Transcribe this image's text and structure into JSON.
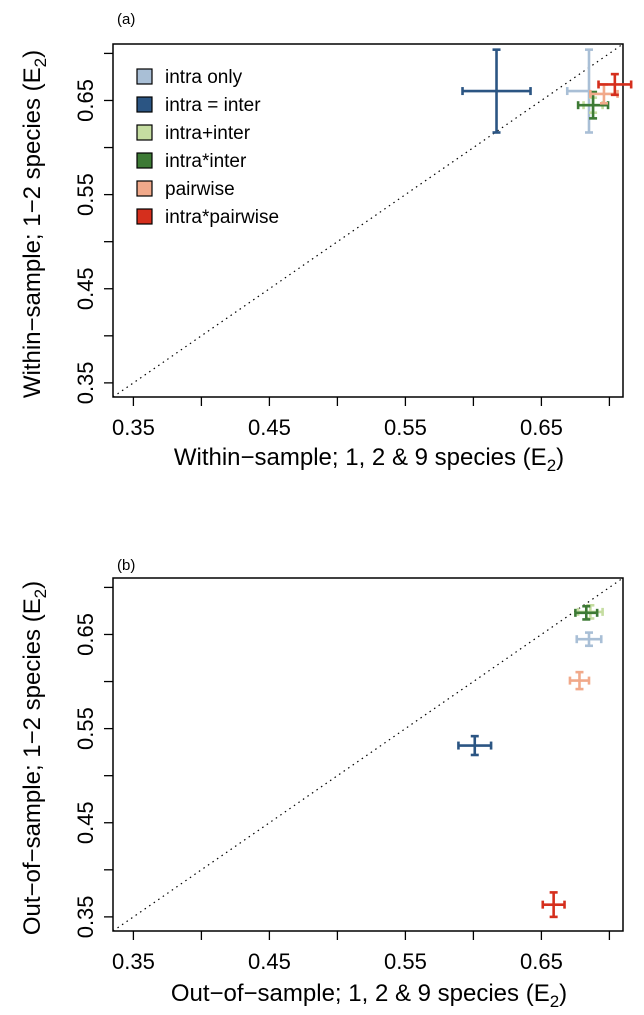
{
  "chart_data": [
    {
      "type": "scatter",
      "panel_label": "(a)",
      "xlabel_text": "Within−sample; 1, 2 & 9 species (E",
      "ylabel_text": "Within−sample; 1−2 species (E",
      "label_subscript": "2",
      "label_close": ")",
      "xlim": [
        0.335,
        0.71
      ],
      "ylim": [
        0.335,
        0.71
      ],
      "ticks": [
        0.35,
        0.45,
        0.55,
        0.65
      ],
      "tick_labels": [
        "0.35",
        "0.45",
        "0.55",
        "0.65"
      ],
      "reference_line": "1:1 dotted",
      "grid": false,
      "legend_position": "top-left",
      "series": [
        {
          "name": "intra only",
          "color": "#a9bfd6",
          "x": 0.685,
          "y": 0.66,
          "xerr": 0.0,
          "yerr": 0.044,
          "xerr_l": 0.016,
          "xerr_r": 0.0
        },
        {
          "name": "intra = inter",
          "color": "#2b5583",
          "x": 0.617,
          "y": 0.66,
          "xerr": 0.025,
          "yerr": 0.044
        },
        {
          "name": "intra+inter",
          "color": "#c5dda1",
          "x": 0.688,
          "y": 0.645,
          "xerr": 0.007,
          "yerr": 0.008
        },
        {
          "name": "intra*inter",
          "color": "#3d7a35",
          "x": 0.688,
          "y": 0.645,
          "xerr": 0.011,
          "yerr": 0.014
        },
        {
          "name": "pairwise",
          "color": "#f1a98a",
          "x": 0.696,
          "y": 0.657,
          "xerr": 0.01,
          "yerr": 0.01
        },
        {
          "name": "intra*pairwise",
          "color": "#d52f1d",
          "x": 0.704,
          "y": 0.667,
          "xerr": 0.012,
          "yerr": 0.011
        }
      ]
    },
    {
      "type": "scatter",
      "panel_label": "(b)",
      "xlabel_text": "Out−of−sample; 1, 2 & 9 species (E",
      "ylabel_text": "Out−of−sample; 1−2 species (E",
      "label_subscript": "2",
      "label_close": ")",
      "xlim": [
        0.335,
        0.71
      ],
      "ylim": [
        0.335,
        0.71
      ],
      "ticks": [
        0.35,
        0.45,
        0.55,
        0.65
      ],
      "tick_labels": [
        "0.35",
        "0.45",
        "0.55",
        "0.65"
      ],
      "reference_line": "1:1 dotted",
      "grid": false,
      "series": [
        {
          "name": "intra only",
          "color": "#a9bfd6",
          "x": 0.685,
          "y": 0.645,
          "xerr": 0.009,
          "yerr": 0.007
        },
        {
          "name": "intra = inter",
          "color": "#2b5583",
          "x": 0.601,
          "y": 0.532,
          "xerr": 0.012,
          "yerr": 0.01
        },
        {
          "name": "intra+inter",
          "color": "#c5dda1",
          "x": 0.686,
          "y": 0.674,
          "xerr": 0.009,
          "yerr": 0.007
        },
        {
          "name": "intra*inter",
          "color": "#3d7a35",
          "x": 0.683,
          "y": 0.673,
          "xerr": 0.008,
          "yerr": 0.007
        },
        {
          "name": "pairwise",
          "color": "#f1a98a",
          "x": 0.678,
          "y": 0.601,
          "xerr": 0.007,
          "yerr": 0.009
        },
        {
          "name": "intra*pairwise",
          "color": "#d52f1d",
          "x": 0.659,
          "y": 0.363,
          "xerr": 0.008,
          "yerr": 0.013
        }
      ]
    }
  ]
}
